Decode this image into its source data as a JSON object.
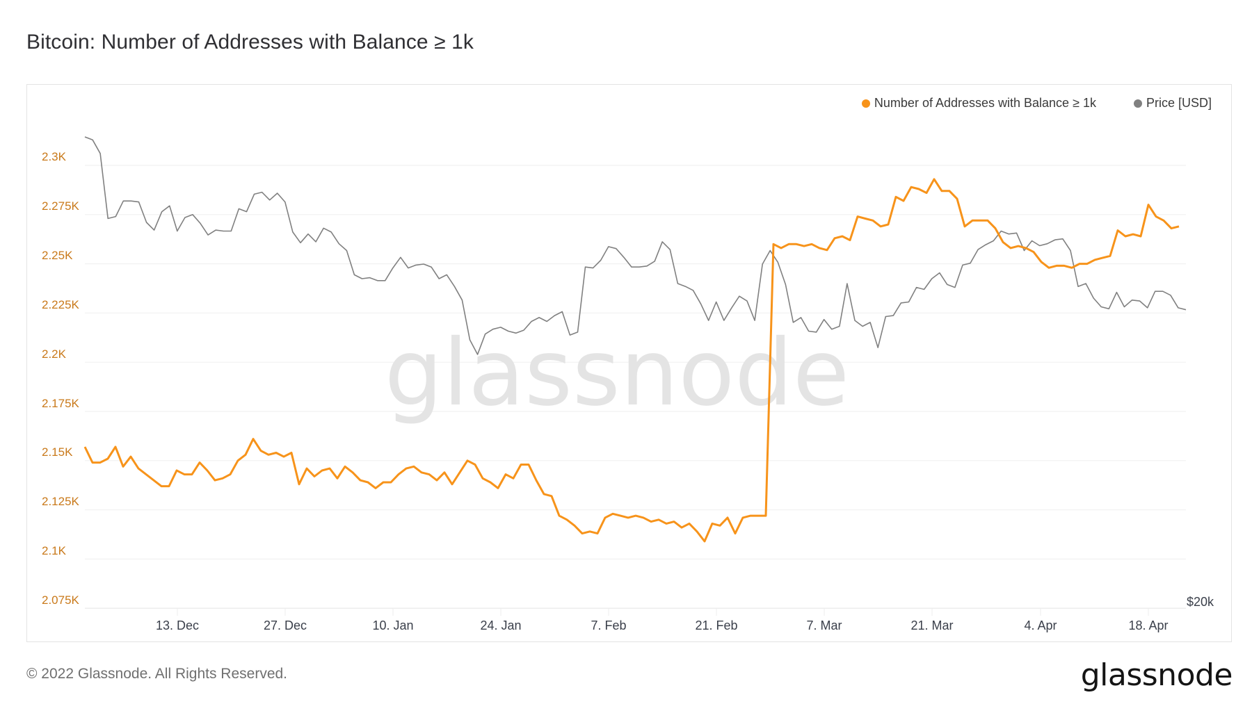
{
  "page": {
    "title": "Bitcoin: Number of Addresses with Balance ≥ 1k",
    "footer": "© 2022 Glassnode. All Rights Reserved.",
    "logo": "glassnode",
    "watermark": "glassnode"
  },
  "legend": {
    "items": [
      {
        "label": "Number of Addresses with Balance ≥ 1k",
        "color": "#f7931a",
        "icon": "orange-dot-icon"
      },
      {
        "label": "Price [USD]",
        "color": "#808080",
        "icon": "gray-dot-icon"
      }
    ]
  },
  "axes": {
    "y_left_ticks": [
      "2.3K",
      "2.275K",
      "2.25K",
      "2.225K",
      "2.2K",
      "2.175K",
      "2.15K",
      "2.125K",
      "2.1K",
      "2.075K"
    ],
    "y_right_label": "$20k",
    "x_ticks": [
      "13. Dec",
      "27. Dec",
      "10. Jan",
      "24. Jan",
      "7. Feb",
      "21. Feb",
      "7. Mar",
      "21. Mar",
      "4. Apr",
      "18. Apr"
    ]
  },
  "colors": {
    "addresses": "#f7931a",
    "price": "#7f7f7f",
    "grid": "#f0f0f0",
    "ytick": "#c9791a"
  },
  "chart_data": {
    "type": "line",
    "title": "Bitcoin: Number of Addresses with Balance ≥ 1k",
    "xlabel": "",
    "ylabel": "",
    "ylim": [
      2075,
      2310
    ],
    "grid": true,
    "legend_position": "top-right",
    "x_range": [
      "2021-12-02",
      "2022-04-24"
    ],
    "x_tick_labels": [
      "13. Dec",
      "27. Dec",
      "10. Jan",
      "24. Jan",
      "7. Feb",
      "21. Feb",
      "7. Mar",
      "21. Mar",
      "4. Apr",
      "18. Apr"
    ],
    "series": [
      {
        "name": "Number of Addresses with Balance ≥ 1k",
        "axis": "left",
        "color": "#f7931a",
        "values": [
          2157,
          2149,
          2149,
          2151,
          2157,
          2147,
          2152,
          2146,
          2143,
          2140,
          2137,
          2137,
          2145,
          2143,
          2143,
          2149,
          2145,
          2140,
          2141,
          2143,
          2150,
          2153,
          2161,
          2155,
          2153,
          2154,
          2152,
          2154,
          2138,
          2146,
          2142,
          2145,
          2146,
          2141,
          2147,
          2144,
          2140,
          2139,
          2136,
          2139,
          2139,
          2143,
          2146,
          2147,
          2144,
          2143,
          2140,
          2144,
          2138,
          2144,
          2150,
          2148,
          2141,
          2139,
          2136,
          2143,
          2141,
          2148,
          2148,
          2140,
          2133,
          2132,
          2122,
          2120,
          2117,
          2113,
          2114,
          2113,
          2121,
          2123,
          2122,
          2121,
          2122,
          2121,
          2119,
          2120,
          2118,
          2119,
          2116,
          2118,
          2114,
          2109,
          2118,
          2117,
          2121,
          2113,
          2121,
          2122,
          2122,
          2122,
          2260,
          2258,
          2260,
          2260,
          2259,
          2260,
          2258,
          2257,
          2263,
          2264,
          2262,
          2274,
          2273,
          2272,
          2269,
          2270,
          2284,
          2282,
          2289,
          2288,
          2286,
          2293,
          2287,
          2287,
          2283,
          2269,
          2272,
          2272,
          2272,
          2268,
          2261,
          2258,
          2259,
          2258,
          2256,
          2251,
          2248,
          2249,
          2249,
          2248,
          2250,
          2250,
          2252,
          2253,
          2254,
          2267,
          2264,
          2265,
          2264,
          2280,
          2274,
          2272,
          2268,
          2269
        ]
      },
      {
        "name": "Price [USD]",
        "axis": "right",
        "color": "#808080",
        "units": "USD (relative, right axis baseline $20k)",
        "values": [
          57200,
          56900,
          55500,
          48800,
          49000,
          50600,
          50600,
          50500,
          48400,
          47600,
          49500,
          50100,
          47500,
          48900,
          49200,
          48300,
          47100,
          47600,
          47500,
          47500,
          49800,
          49500,
          51300,
          51500,
          50700,
          51400,
          50500,
          47400,
          46300,
          47200,
          46400,
          47800,
          47400,
          46200,
          45500,
          43000,
          42600,
          42700,
          42400,
          42400,
          43700,
          44800,
          43700,
          44000,
          44100,
          43800,
          42600,
          43000,
          41800,
          40400,
          36300,
          34800,
          36900,
          37400,
          37600,
          37200,
          37000,
          37300,
          38200,
          38600,
          38200,
          38800,
          39200,
          36800,
          37100,
          43800,
          43700,
          44500,
          45900,
          45700,
          44800,
          43800,
          43800,
          43900,
          44400,
          46400,
          45600,
          42100,
          41800,
          41400,
          40000,
          38300,
          40200,
          38300,
          39600,
          40800,
          40300,
          38300,
          44100,
          45500,
          44300,
          42000,
          38100,
          38600,
          37200,
          37100,
          38400,
          37400,
          37700,
          42100,
          38300,
          37700,
          38100,
          35500,
          38700,
          38800,
          40100,
          40200,
          41700,
          41500,
          42600,
          43200,
          42000,
          41700,
          44000,
          44200,
          45600,
          46100,
          46500,
          47500,
          47200,
          47300,
          45500,
          46500,
          46000,
          46200,
          46600,
          46700,
          45500,
          41800,
          42100,
          40600,
          39700,
          39500,
          41200,
          39700,
          40400,
          40300,
          39600,
          41300,
          41300,
          40900,
          39600,
          39400
        ]
      }
    ]
  }
}
